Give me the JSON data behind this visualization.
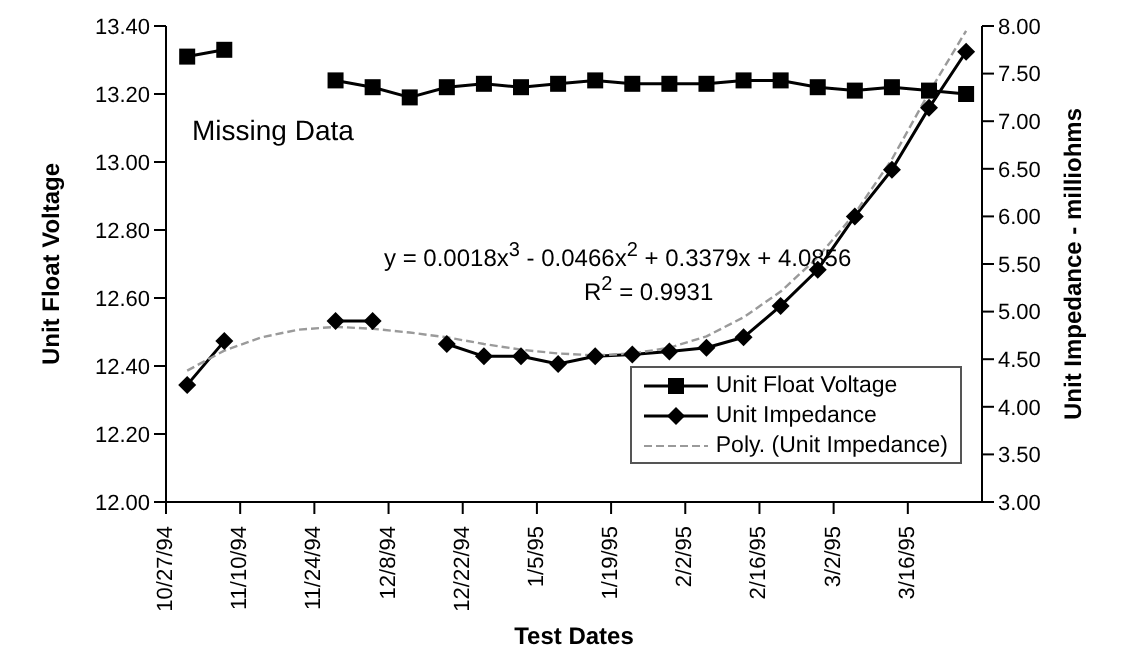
{
  "chart_data": {
    "type": "line",
    "xlabel": "Test Dates",
    "ylabel": "Unit Float Voltage",
    "y2label": "Unit Impedance - milliohms",
    "x": [
      "1994-10-31",
      "1994-11-07",
      "1994-11-14",
      "1994-11-21",
      "1994-11-28",
      "1994-12-05",
      "1994-12-12",
      "1994-12-19",
      "1994-12-26",
      "1995-01-02",
      "1995-01-09",
      "1995-01-16",
      "1995-01-23",
      "1995-01-30",
      "1995-02-06",
      "1995-02-13",
      "1995-02-20",
      "1995-02-27",
      "1995-03-06",
      "1995-03-13",
      "1995-03-20",
      "1995-03-27"
    ],
    "series": [
      {
        "name": "Unit Float Voltage",
        "color": "#000000",
        "marker": "square",
        "values": [
          13.31,
          13.33,
          null,
          null,
          13.24,
          13.22,
          13.19,
          13.22,
          13.23,
          13.22,
          13.23,
          13.24,
          13.23,
          13.23,
          13.23,
          13.24,
          13.24,
          13.22,
          13.21,
          13.22,
          13.21,
          13.2
        ]
      },
      {
        "name": "Unit Impedance",
        "color": "#000000",
        "marker": "diamond",
        "axis": "y2",
        "values": [
          4.23,
          4.69,
          null,
          null,
          4.9,
          4.9,
          null,
          4.66,
          4.53,
          4.53,
          4.45,
          4.53,
          4.55,
          4.58,
          4.62,
          4.73,
          5.06,
          5.44,
          6.0,
          6.49,
          7.14,
          7.73
        ]
      },
      {
        "name": "Poly. (Unit Impedance)",
        "color": "#9a9a9a",
        "type": "line",
        "marker": "none",
        "line_style": "dashed",
        "axis": "y2",
        "values": [
          4.38,
          4.59,
          4.73,
          4.81,
          4.84,
          4.82,
          4.78,
          4.73,
          4.66,
          4.6,
          4.56,
          4.54,
          4.56,
          4.62,
          4.74,
          4.94,
          5.21,
          5.57,
          6.03,
          6.6,
          7.3,
          7.95
        ]
      }
    ],
    "xlim": [
      "1994-10-27",
      "1995-03-30"
    ],
    "xticks": [
      {
        "value": "1994-10-27",
        "label": "10/27/94"
      },
      {
        "value": "1994-11-10",
        "label": "11/10/94"
      },
      {
        "value": "1994-11-24",
        "label": "11/24/94"
      },
      {
        "value": "1994-12-08",
        "label": "12/8/94"
      },
      {
        "value": "1994-12-22",
        "label": "12/22/94"
      },
      {
        "value": "1995-01-05",
        "label": "1/5/95"
      },
      {
        "value": "1995-01-19",
        "label": "1/19/95"
      },
      {
        "value": "1995-02-02",
        "label": "2/2/95"
      },
      {
        "value": "1995-02-16",
        "label": "2/16/95"
      },
      {
        "value": "1995-03-02",
        "label": "3/2/95"
      },
      {
        "value": "1995-03-16",
        "label": "3/16/95"
      }
    ],
    "ylim": [
      12.0,
      13.4
    ],
    "yticks": [
      {
        "value": 12.0,
        "label": "12.00"
      },
      {
        "value": 12.2,
        "label": "12.20"
      },
      {
        "value": 12.4,
        "label": "12.40"
      },
      {
        "value": 12.6,
        "label": "12.60"
      },
      {
        "value": 12.8,
        "label": "12.80"
      },
      {
        "value": 13.0,
        "label": "13.00"
      },
      {
        "value": 13.2,
        "label": "13.20"
      },
      {
        "value": 13.4,
        "label": "13.40"
      }
    ],
    "y2lim": [
      3.0,
      8.0
    ],
    "y2ticks": [
      {
        "value": 3.0,
        "label": "3.00"
      },
      {
        "value": 3.5,
        "label": "3.50"
      },
      {
        "value": 4.0,
        "label": "4.00"
      },
      {
        "value": 4.5,
        "label": "4.50"
      },
      {
        "value": 5.0,
        "label": "5.00"
      },
      {
        "value": 5.5,
        "label": "5.50"
      },
      {
        "value": 6.0,
        "label": "6.00"
      },
      {
        "value": 6.5,
        "label": "6.50"
      },
      {
        "value": 7.0,
        "label": "7.00"
      },
      {
        "value": 7.5,
        "label": "7.50"
      },
      {
        "value": 8.0,
        "label": "8.00"
      }
    ],
    "grid": false,
    "legend": "bottom right",
    "annotations": [
      "Missing Data",
      "y = 0.0018x$^{3}$ - 0.0466x$^{2}$ + 0.3379x + 4.0856",
      "R$^{2}$ = 0.9931"
    ]
  }
}
